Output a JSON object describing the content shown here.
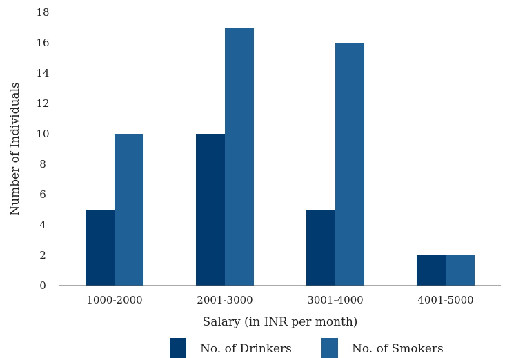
{
  "chart_data": {
    "type": "bar",
    "categories": [
      "1000-2000",
      "2001-3000",
      "3001-4000",
      "4001-5000"
    ],
    "series": [
      {
        "name": "No. of Drinkers",
        "color": "#003a6e",
        "values": [
          5,
          10,
          5,
          2
        ]
      },
      {
        "name": "No. of Smokers",
        "color": "#1f6096",
        "values": [
          10,
          17,
          16,
          2
        ]
      }
    ],
    "xlabel": "Salary (in INR per month)",
    "ylabel": "Number of Individuals",
    "ylim": [
      0,
      18
    ],
    "yticks": [
      0,
      2,
      4,
      6,
      8,
      10,
      12,
      14,
      16,
      18
    ],
    "grid": false,
    "legend_position": "bottom"
  }
}
